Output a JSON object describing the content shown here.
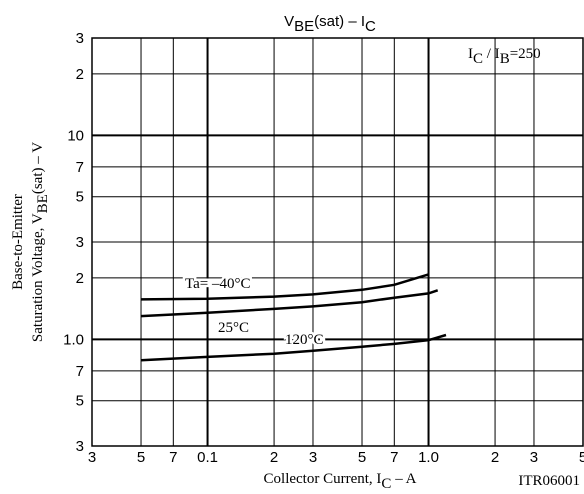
{
  "chart_data": {
    "type": "line",
    "title": [
      "V",
      "BE",
      "(sat)  –  I",
      "C"
    ],
    "x_label": [
      "Collector Current, I",
      "C",
      "  –  A"
    ],
    "y_label": [
      "Base-to-Emitter",
      "Saturation Voltage, V",
      "BE",
      "(sat)  –  V"
    ],
    "condition": [
      "I",
      "C",
      " / I",
      "B",
      "=250"
    ],
    "code": "ITR06001",
    "log_x": true,
    "log_y": true,
    "grid": true,
    "color": "#000000",
    "xlim": [
      0.03,
      5
    ],
    "ylim": [
      0.3,
      30
    ],
    "xticks": [
      {
        "value": 0.03,
        "label": "3"
      },
      {
        "value": 0.05,
        "label": "5"
      },
      {
        "value": 0.07,
        "label": "7"
      },
      0.1,
      {
        "value": 0.2,
        "label": "2"
      },
      {
        "value": 0.3,
        "label": "3"
      },
      {
        "value": 0.5,
        "label": "5"
      },
      {
        "value": 0.7,
        "label": "7"
      },
      {
        "value": 1,
        "label": "1.0"
      },
      2,
      3,
      5
    ],
    "yticks": [
      {
        "value": 0.3,
        "label": "3"
      },
      {
        "value": 0.5,
        "label": "5"
      },
      {
        "value": 0.7,
        "label": "7"
      },
      {
        "value": 1,
        "label": "1.0"
      },
      2,
      3,
      5,
      7,
      10,
      {
        "value": 20,
        "label": "2"
      },
      {
        "value": 30,
        "label": "3"
      }
    ],
    "series": [
      {
        "name": "Ta= –40°C",
        "x": [
          0.05,
          0.1,
          0.2,
          0.3,
          0.5,
          0.7,
          1.0
        ],
        "values": [
          1.57,
          1.58,
          1.62,
          1.66,
          1.75,
          1.85,
          2.08
        ]
      },
      {
        "name": "25°C",
        "x": [
          0.05,
          0.1,
          0.2,
          0.3,
          0.5,
          0.7,
          1.0,
          1.1
        ],
        "values": [
          1.3,
          1.35,
          1.41,
          1.45,
          1.52,
          1.6,
          1.68,
          1.74
        ]
      },
      {
        "name": "120°C",
        "x": [
          0.05,
          0.1,
          0.2,
          0.3,
          0.5,
          0.7,
          1.0,
          1.2
        ],
        "values": [
          0.79,
          0.82,
          0.85,
          0.88,
          0.92,
          0.95,
          0.99,
          1.05
        ]
      }
    ]
  }
}
